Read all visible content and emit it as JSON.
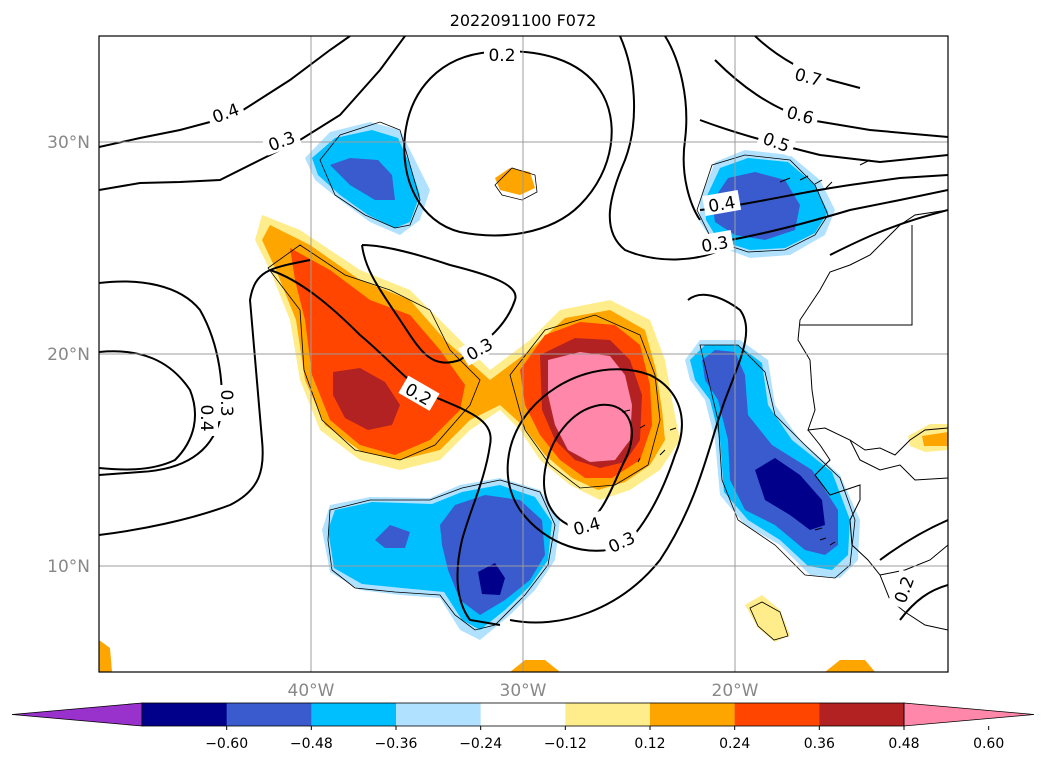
{
  "title": "2022091100 F072",
  "lat_ticks": [
    "30°N",
    "20°N",
    "10°N"
  ],
  "lon_ticks": [
    "40°W",
    "30°W",
    "20°W"
  ],
  "contour_labels": [
    "0.2",
    "0.4",
    "0.3",
    "0.7",
    "0.6",
    "0.5",
    "0.4",
    "0.3",
    "0.3",
    "0.3",
    "0.4",
    "0.2",
    "0.4",
    "0.3",
    "0.2"
  ],
  "colorbar": {
    "ticks": [
      "−0.60",
      "−0.48",
      "−0.36",
      "−0.24",
      "−0.12",
      "0.12",
      "0.24",
      "0.36",
      "0.48",
      "0.60"
    ],
    "colors": [
      "#9932cc",
      "#00008b",
      "#3a5bcd",
      "#00bfff",
      "#b0e2ff",
      "#ffffff",
      "#ffec8b",
      "#ffa500",
      "#ff4500",
      "#b22222",
      "#ff88aa"
    ]
  },
  "shading_colors": {
    "orange_band": "#ffa500",
    "red_orange": "#ff4500",
    "dark_red": "#b22222",
    "pink": "#ff88aa",
    "light_yellow": "#ffec8b",
    "light_blue": "#b0e2ff",
    "sky_blue": "#00bfff",
    "royal_blue": "#3a5bcd",
    "navy": "#00008b"
  }
}
